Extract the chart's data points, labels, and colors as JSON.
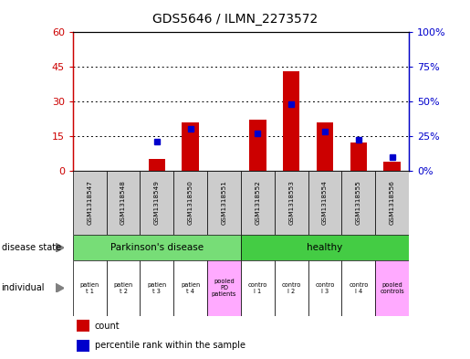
{
  "title": "GDS5646 / ILMN_2273572",
  "samples": [
    "GSM1318547",
    "GSM1318548",
    "GSM1318549",
    "GSM1318550",
    "GSM1318551",
    "GSM1318552",
    "GSM1318553",
    "GSM1318554",
    "GSM1318555",
    "GSM1318556"
  ],
  "count_values": [
    0,
    0,
    5,
    21,
    0,
    22,
    43,
    21,
    12,
    4
  ],
  "percentile_values": [
    0,
    0,
    21,
    30,
    0,
    27,
    48,
    28,
    22,
    10
  ],
  "ylim_left": [
    0,
    60
  ],
  "ylim_right": [
    0,
    100
  ],
  "yticks_left": [
    0,
    15,
    30,
    45,
    60
  ],
  "yticks_right": [
    0,
    25,
    50,
    75,
    100
  ],
  "ytick_labels_left": [
    "0",
    "15",
    "30",
    "45",
    "60"
  ],
  "ytick_labels_right": [
    "0%",
    "25%",
    "50%",
    "75%",
    "100%"
  ],
  "bar_color": "#cc0000",
  "marker_color": "#0000cc",
  "disease_state_groups": [
    {
      "label": "Parkinson's disease",
      "start": 0,
      "end": 5,
      "color": "#77dd77"
    },
    {
      "label": "healthy",
      "start": 5,
      "end": 10,
      "color": "#44cc44"
    }
  ],
  "individual_labels": [
    "patien\nt 1",
    "patien\nt 2",
    "patien\nt 3",
    "patien\nt 4",
    "pooled\nPD\npatients",
    "contro\nl 1",
    "contro\nl 2",
    "contro\nl 3",
    "contro\nl 4",
    "pooled\ncontrols"
  ],
  "individual_colors": [
    "#ffffff",
    "#ffffff",
    "#ffffff",
    "#ffffff",
    "#ffaaff",
    "#ffffff",
    "#ffffff",
    "#ffffff",
    "#ffffff",
    "#ffaaff"
  ],
  "gsm_bg_color": "#cccccc",
  "left_label_color": "#cc0000",
  "right_label_color": "#0000cc",
  "grid_color": "#000000"
}
